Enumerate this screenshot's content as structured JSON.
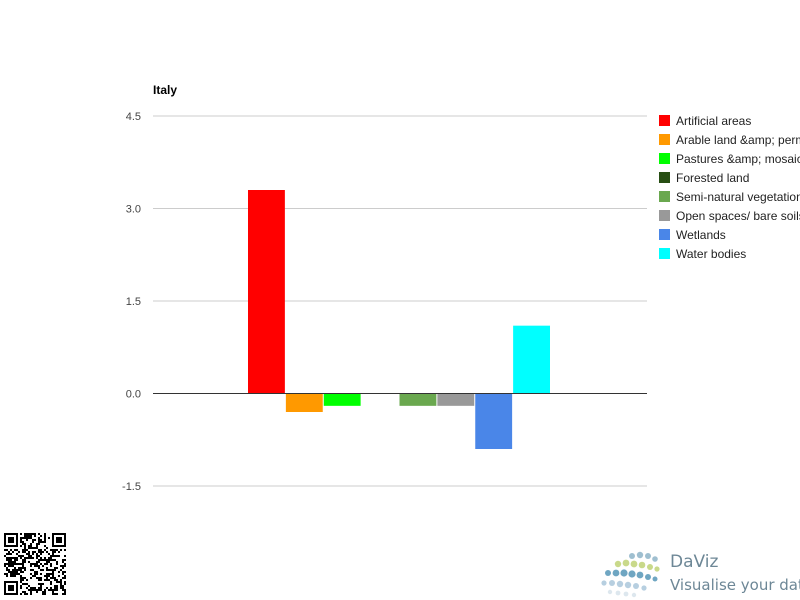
{
  "chart_data": {
    "type": "bar",
    "title": "Italy",
    "xlabel": "",
    "ylabel": "",
    "ylim": [
      -1.5,
      4.5
    ],
    "yticks": [
      "4.5",
      "3.0",
      "1.5",
      "0.0",
      "-1.5"
    ],
    "ytick_values": [
      4.5,
      3.0,
      1.5,
      0.0,
      -1.5
    ],
    "grid": true,
    "legend_position": "right",
    "categories": [
      ""
    ],
    "series": [
      {
        "name": "Artificial areas",
        "color": "#ff0000",
        "values": [
          3.3
        ]
      },
      {
        "name": "Arable land &amp; permanent crops",
        "color": "#ff9900",
        "values": [
          -0.3
        ]
      },
      {
        "name": "Pastures &amp; mosaics",
        "color": "#00ff00",
        "values": [
          -0.2
        ]
      },
      {
        "name": "Forested land",
        "color": "#274e13",
        "values": [
          0.0
        ]
      },
      {
        "name": "Semi-natural vegetation",
        "color": "#6aa84f",
        "values": [
          -0.2
        ]
      },
      {
        "name": "Open spaces/ bare soils",
        "color": "#999999",
        "values": [
          -0.2
        ]
      },
      {
        "name": "Wetlands",
        "color": "#4a86e8",
        "values": [
          -0.9
        ]
      },
      {
        "name": "Water bodies",
        "color": "#00ffff",
        "values": [
          1.1
        ]
      }
    ]
  },
  "branding": {
    "name": "DaViz",
    "tagline": "Visualise your data",
    "qr_icon": "qr-code-icon",
    "logo_icon": "daviz-dots-logo-icon"
  }
}
